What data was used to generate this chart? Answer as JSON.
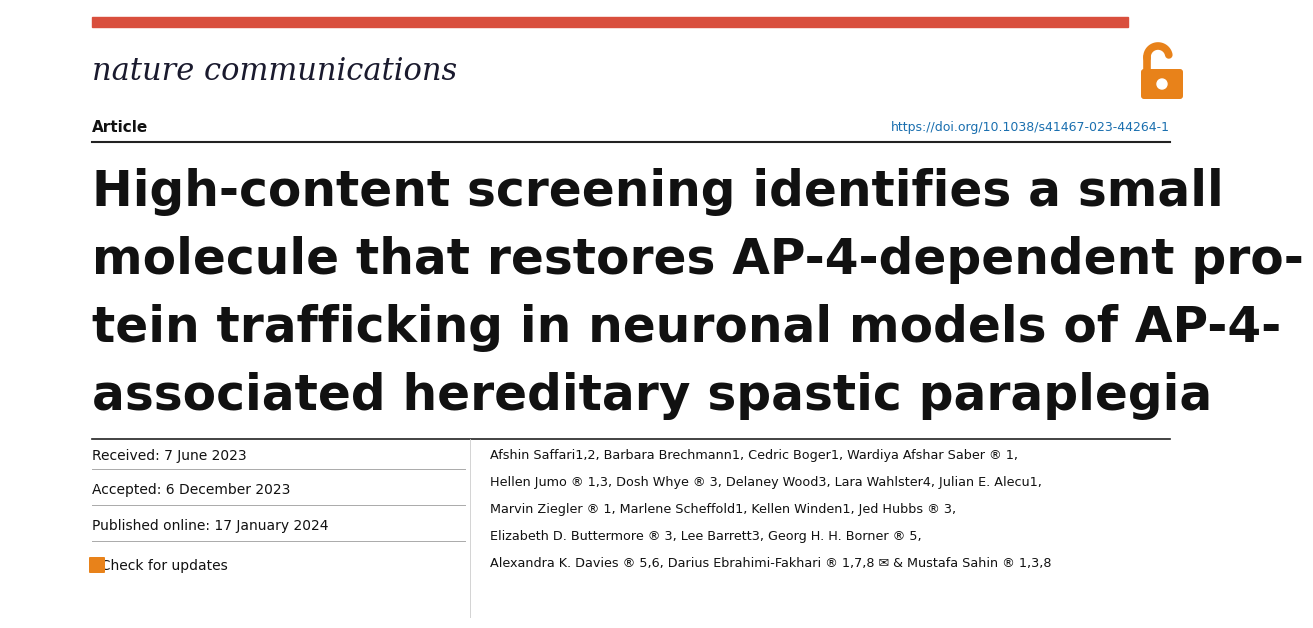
{
  "background_color": "#ffffff",
  "red_bar_color": "#d94f3d",
  "journal_name": "nature communications",
  "journal_color": "#1a1a2e",
  "open_access_color": "#e8821a",
  "article_label": "Article",
  "article_color": "#111111",
  "doi_text": "https://doi.org/10.1038/s41467-023-44264-1",
  "doi_color": "#1a6faf",
  "separator_color": "#333333",
  "title_line1": "High-content screening identifies a small",
  "title_line2": "molecule that restores AP-4-dependent pro-",
  "title_line3": "tein trafficking in neuronal models of AP-4-",
  "title_line4": "associated hereditary spastic paraplegia",
  "title_color": "#111111",
  "received_label": "Received: 7 June 2023",
  "accepted_label": "Accepted: 6 December 2023",
  "published_label": "Published online: 17 January 2024",
  "check_label": "  Check for updates",
  "meta_color": "#111111",
  "author_lines": [
    "Afshin Saffari1,2, Barbara Brechmann1, Cedric Boger1, Wardiya Afshar Saber ® 1,",
    "Hellen Jumo ® 1,3, Dosh Whye ® 3, Delaney Wood3, Lara Wahlster4, Julian E. Alecu1,",
    "Marvin Ziegler ® 1, Marlene Scheffold1, Kellen Winden1, Jed Hubbs ® 3,",
    "Elizabeth D. Buttermore ® 3, Lee Barrett3, Georg H. H. Borner ® 5,",
    "Alexandra K. Davies ® 5,6, Darius Ebrahimi-Fakhari ® 1,7,8 ✉ & Mustafa Sahin ® 1,3,8"
  ],
  "authors_color": "#111111"
}
